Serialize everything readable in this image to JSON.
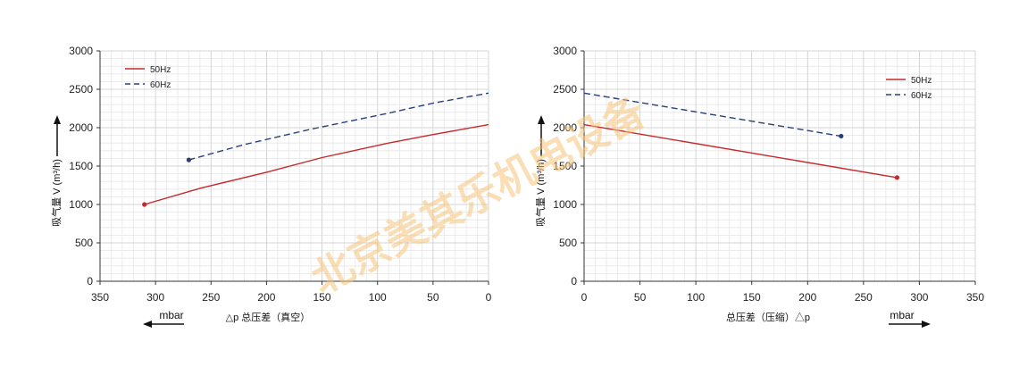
{
  "chart_data": [
    {
      "type": "line",
      "title": "",
      "xlabel": "△p 总压差（真空）",
      "xunit": "mbar",
      "ylabel": "吸气量 V (m³/h)",
      "xlim": [
        350,
        0
      ],
      "ylim": [
        0,
        3000
      ],
      "xticks": [
        350,
        300,
        250,
        200,
        150,
        100,
        50,
        0
      ],
      "yticks": [
        0,
        500,
        1000,
        1500,
        2000,
        2500,
        3000
      ],
      "grid": true,
      "legend_position": "top-left",
      "series": [
        {
          "name": "50Hz",
          "color": "#c8282a",
          "dash": "solid",
          "x": [
            310,
            260,
            200,
            150,
            90,
            50,
            0
          ],
          "y": [
            1000,
            1210,
            1420,
            1610,
            1800,
            1910,
            2040
          ]
        },
        {
          "name": "60Hz",
          "color": "#2a3f78",
          "dash": "dashed",
          "x": [
            270,
            220,
            160,
            90,
            50,
            0
          ],
          "y": [
            1580,
            1780,
            1980,
            2190,
            2320,
            2450
          ]
        }
      ]
    },
    {
      "type": "line",
      "title": "",
      "xlabel": "总压差（压缩）△p",
      "xunit": "mbar",
      "ylabel": "吸气量 V (m³/h)",
      "xlim": [
        0,
        350
      ],
      "ylim": [
        0,
        3000
      ],
      "xticks": [
        0,
        50,
        100,
        150,
        200,
        250,
        300,
        350
      ],
      "yticks": [
        0,
        500,
        1000,
        1500,
        2000,
        2500,
        3000
      ],
      "grid": true,
      "legend_position": "top-right",
      "series": [
        {
          "name": "50Hz",
          "color": "#c8282a",
          "dash": "solid",
          "x": [
            0,
            280
          ],
          "y": [
            2040,
            1350
          ]
        },
        {
          "name": "60Hz",
          "color": "#2a3f78",
          "dash": "dashed",
          "x": [
            0,
            230
          ],
          "y": [
            2450,
            1890
          ]
        }
      ]
    }
  ],
  "watermark": "北京美其乐机电设备"
}
